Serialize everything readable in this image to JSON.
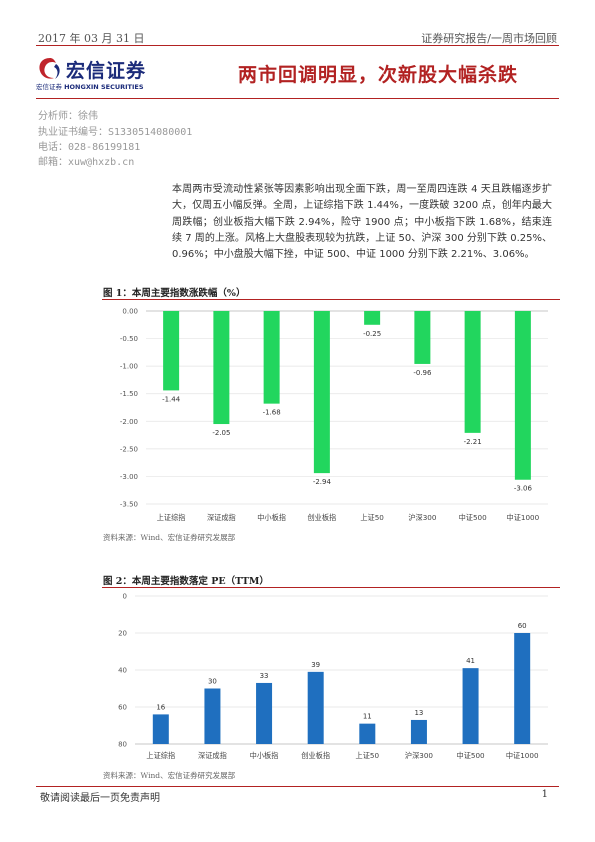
{
  "header": {
    "date": "2017 年 03 月 31 日",
    "report_type": "证券研究报告/一周市场回顾"
  },
  "logo": {
    "name": "宏信证券",
    "tagline_cn": "宏信证券",
    "tagline_en": "HONGXIN SECURITIES"
  },
  "title": "两市回调明显，次新股大幅杀跌",
  "analyst": {
    "name_line": "分析师：徐伟",
    "license_line": "执业证书编号：S1330514080001",
    "phone_line": "电话：028-86199181",
    "email_line": "邮箱：xuw@hxzb.cn"
  },
  "summary": "本周两市受流动性紧张等因素影响出现全面下跌，周一至周四连跌 4 天且跌幅逐步扩大，仅周五小幅反弹。全周，上证综指下跌 1.44%，一度跌破 3200 点，创年内最大周跌幅；创业板指大幅下跌 2.94%，险守 1900 点；中小板指下跌 1.68%，结束连续 7 周的上涨。风格上大盘股表现较为抗跌，上证 50、沪深 300 分别下跌 0.25%、0.96%；中小盘股大幅下挫，中证 500、中证 1000 分别下跌 2.21%、3.06%。",
  "figure1": {
    "title": "图 1：本周主要指数涨跌幅（%）",
    "source": "资料来源：Wind、宏信证券研究发展部"
  },
  "figure2": {
    "title": "图 2：本周主要指数落定 PE（TTM）",
    "source": "资料来源：Wind、宏信证券研究发展部"
  },
  "chart_data": [
    {
      "type": "bar",
      "title": "本周主要指数涨跌幅（%）",
      "categories": [
        "上证综指",
        "深证成指",
        "中小板指",
        "创业板指",
        "上证50",
        "沪深300",
        "中证500",
        "中证1000"
      ],
      "values": [
        -1.44,
        -2.05,
        -1.68,
        -2.94,
        -0.25,
        -0.96,
        -2.21,
        -3.06
      ],
      "data_labels": [
        "-1.44",
        "-2.05",
        "-1.68",
        "-2.94",
        "-0.25",
        "-0.96",
        "-2.21",
        "-3.06"
      ],
      "ylim": [
        -3.5,
        0
      ],
      "yticks": [
        "0.00",
        "-0.50",
        "-1.00",
        "-1.50",
        "-2.00",
        "-2.50",
        "-3.00",
        "-3.50"
      ],
      "color": "#22d65e",
      "grid": true
    },
    {
      "type": "bar",
      "title": "本周主要指数落定 PE（TTM）",
      "categories": [
        "上证综指",
        "深证成指",
        "中小板指",
        "创业板指",
        "上证50",
        "沪深300",
        "中证500",
        "中证1000"
      ],
      "values": [
        16,
        30,
        33,
        39,
        11,
        13,
        41,
        60
      ],
      "data_labels": [
        "16",
        "30",
        "33",
        "39",
        "11",
        "13",
        "41",
        "60"
      ],
      "ylim": [
        0,
        80
      ],
      "yticks": [
        "0",
        "20",
        "40",
        "60",
        "80"
      ],
      "color": "#1f6fbf",
      "grid": true
    }
  ],
  "footer": {
    "disclaimer": "敬请阅读最后一页免责声明",
    "page": "1"
  }
}
